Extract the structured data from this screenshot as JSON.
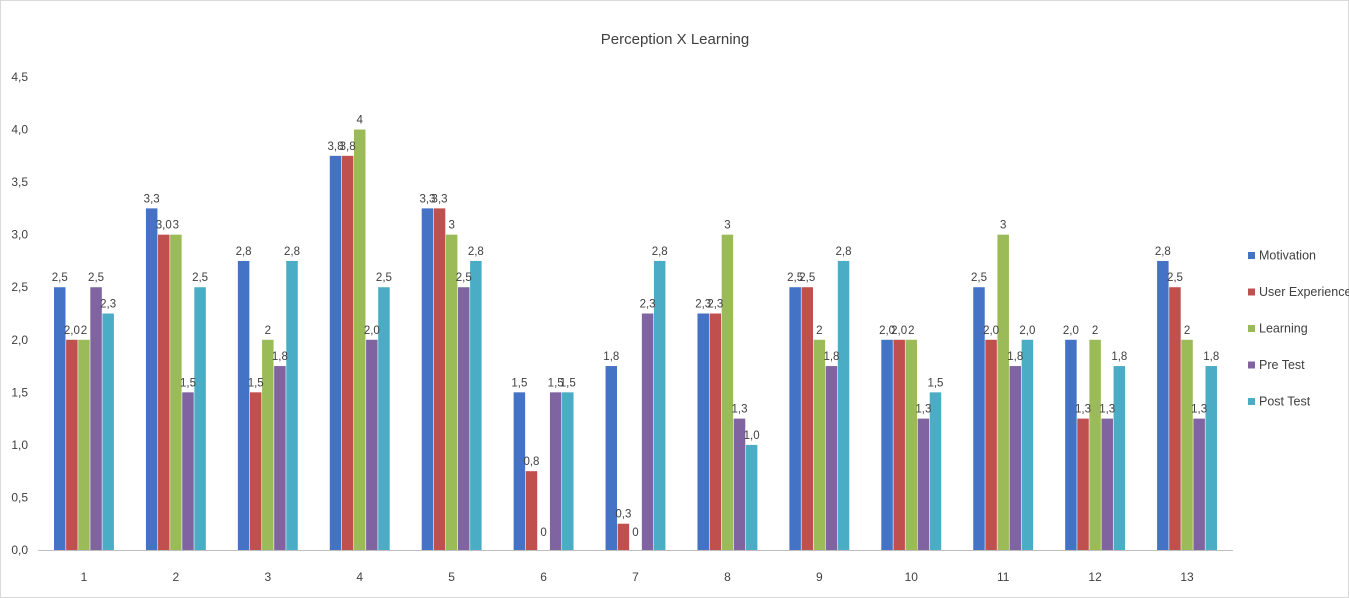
{
  "chart_data": {
    "type": "bar",
    "title": "Perception X Learning",
    "xlabel": "",
    "ylabel": "",
    "ylim": [
      0,
      4.5
    ],
    "yticks": [
      "0,0",
      "0,5",
      "1,0",
      "1,5",
      "2,0",
      "2,5",
      "3,0",
      "3,5",
      "4,0",
      "4,5"
    ],
    "categories": [
      "1",
      "2",
      "3",
      "4",
      "5",
      "6",
      "7",
      "8",
      "9",
      "10",
      "11",
      "12",
      "13"
    ],
    "grid": false,
    "legend_position": "right",
    "series": [
      {
        "name": "Motivation",
        "color": "#4472C4",
        "values": [
          2.5,
          3.25,
          2.75,
          3.75,
          3.25,
          1.5,
          1.75,
          2.25,
          2.5,
          2.0,
          2.5,
          2.0,
          2.75
        ],
        "labels": [
          "2,5",
          "3,3",
          "2,8",
          "3,8",
          "3,3",
          "1,5",
          "1,8",
          "2,3",
          "2,5",
          "2,0",
          "2,5",
          "2,0",
          "2,8"
        ]
      },
      {
        "name": "User Experience",
        "color": "#C0504D",
        "values": [
          2.0,
          3.0,
          1.5,
          3.75,
          3.25,
          0.75,
          0.25,
          2.25,
          2.5,
          2.0,
          2.0,
          1.25,
          2.5
        ],
        "labels": [
          "2,0",
          "3,0",
          "1,5",
          "3,8",
          "3,3",
          "0,8",
          "0,3",
          "2,3",
          "2,5",
          "2,0",
          "2,0",
          "1,3",
          "2,5"
        ]
      },
      {
        "name": "Learning",
        "color": "#9BBB59",
        "values": [
          2,
          3,
          2,
          4,
          3,
          0,
          0,
          3,
          2,
          2,
          3,
          2,
          2
        ],
        "labels": [
          "2",
          "3",
          "2",
          "4",
          "3",
          "0",
          "0",
          "3",
          "2",
          "2",
          "3",
          "2",
          "2"
        ]
      },
      {
        "name": "Pre Test",
        "color": "#8064A2",
        "values": [
          2.5,
          1.5,
          1.75,
          2.0,
          2.5,
          1.5,
          2.25,
          1.25,
          1.75,
          1.25,
          1.75,
          1.25,
          1.25
        ],
        "labels": [
          "2,5",
          "1,5",
          "1,8",
          "2,0",
          "2,5",
          "1,5",
          "2,3",
          "1,3",
          "1,8",
          "1,3",
          "1,8",
          "1,3",
          "1,3"
        ]
      },
      {
        "name": "Post Test",
        "color": "#4BACC6",
        "values": [
          2.25,
          2.5,
          2.75,
          2.5,
          2.75,
          1.5,
          2.75,
          1.0,
          2.75,
          1.5,
          2.0,
          1.75,
          1.75
        ],
        "labels": [
          "2,3",
          "2,5",
          "2,8",
          "2,5",
          "2,8",
          "1,5",
          "2,8",
          "1,0",
          "2,8",
          "1,5",
          "2,0",
          "1,8",
          "1,8"
        ]
      }
    ]
  }
}
